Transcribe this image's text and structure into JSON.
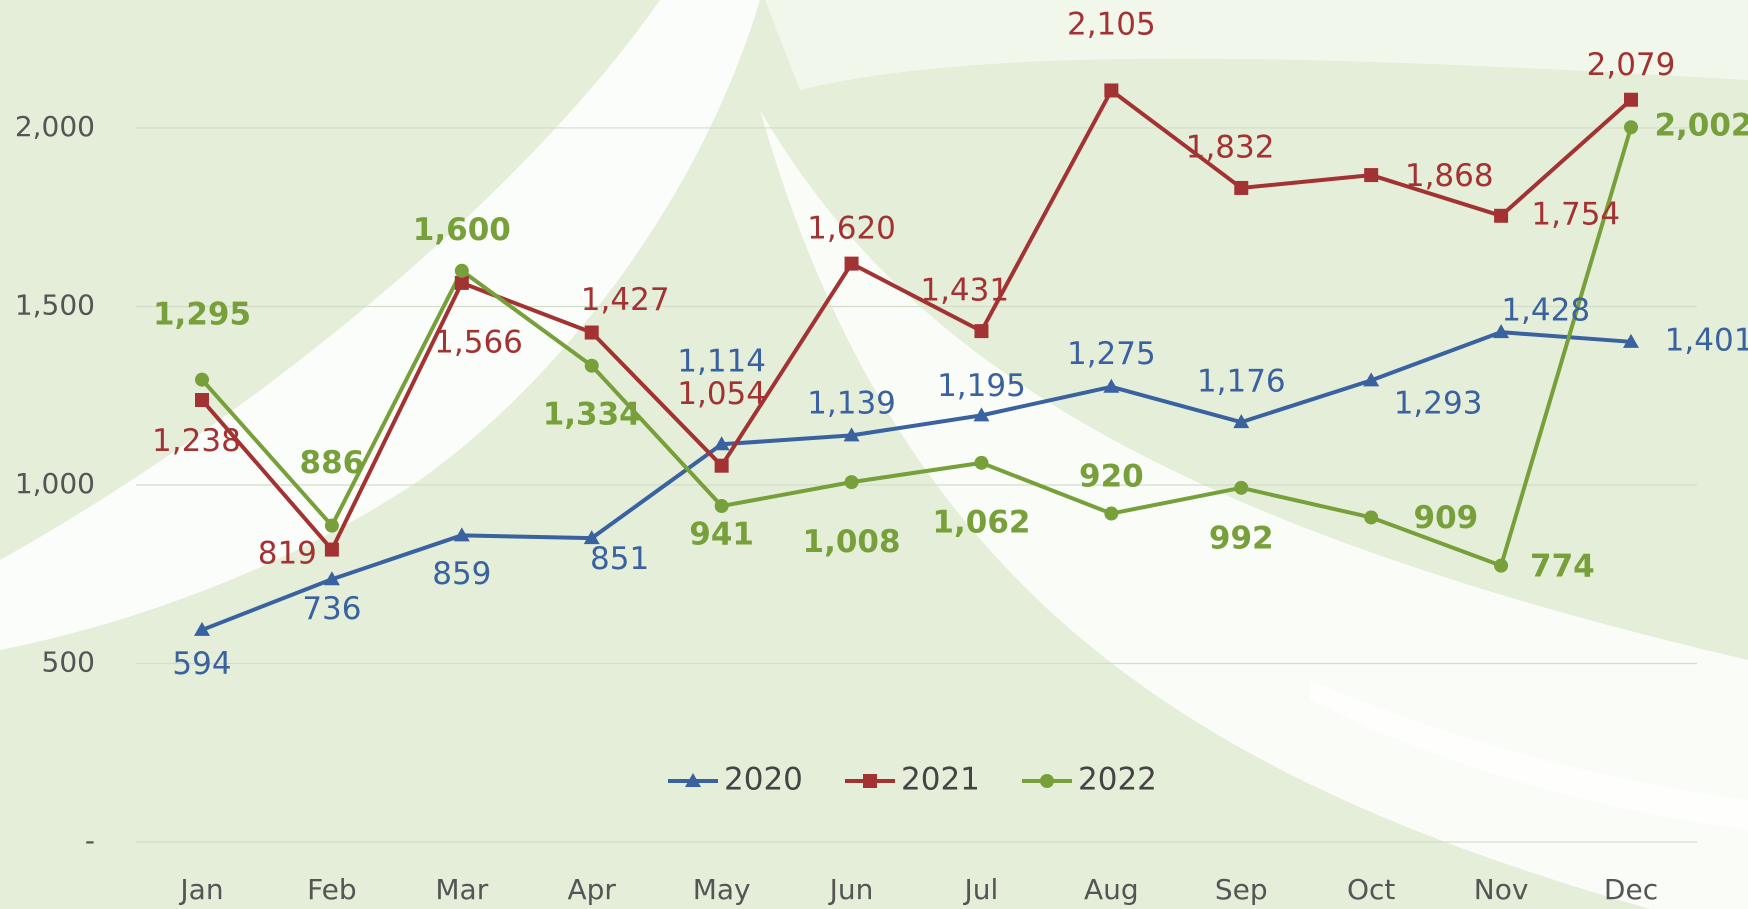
{
  "chart_data": {
    "type": "line",
    "categories": [
      "Jan",
      "Feb",
      "Mar",
      "Apr",
      "May",
      "Jun",
      "Jul",
      "Aug",
      "Sep",
      "Oct",
      "Nov",
      "Dec"
    ],
    "series": [
      {
        "name": "2020",
        "color": "#3a62a0",
        "marker": "triangle",
        "bold": false,
        "values": [
          594,
          736,
          859,
          851,
          1114,
          1139,
          1195,
          1275,
          1176,
          1293,
          1428,
          1401
        ],
        "value_labels": [
          "594",
          "736",
          "859",
          "851",
          "1,114",
          "1,139",
          "1,195",
          "1,275",
          "1,176",
          "1,293",
          "1,428",
          "1,401"
        ]
      },
      {
        "name": "2021",
        "color": "#a33333",
        "marker": "square",
        "bold": false,
        "values": [
          1238,
          819,
          1566,
          1427,
          1054,
          1620,
          1431,
          2105,
          1832,
          1868,
          1754,
          2079
        ],
        "value_labels": [
          "1,238",
          "819",
          "1,566",
          "1,427",
          "1,054",
          "1,620",
          "1,431",
          "2,105",
          "1,832",
          "1,868",
          "1,754",
          "2,079"
        ]
      },
      {
        "name": "2022",
        "color": "#77a03a",
        "marker": "circle",
        "bold": true,
        "values": [
          1295,
          886,
          1600,
          1334,
          941,
          1008,
          1062,
          920,
          992,
          909,
          774,
          2002
        ],
        "value_labels": [
          "1,295",
          "886",
          "1,600",
          "1,334",
          "941",
          "1,008",
          "1,062",
          "920",
          "992",
          "909",
          "774",
          "2,002"
        ]
      }
    ],
    "ylim": [
      0,
      2350
    ],
    "yticks": [
      {
        "value": 0,
        "label": "-"
      },
      500,
      {
        "value": 1000,
        "label": "1,000"
      },
      {
        "value": 1500,
        "label": "1,500"
      },
      {
        "value": 2000,
        "label": "2,000"
      }
    ],
    "grid": true,
    "legend": "bottom"
  }
}
